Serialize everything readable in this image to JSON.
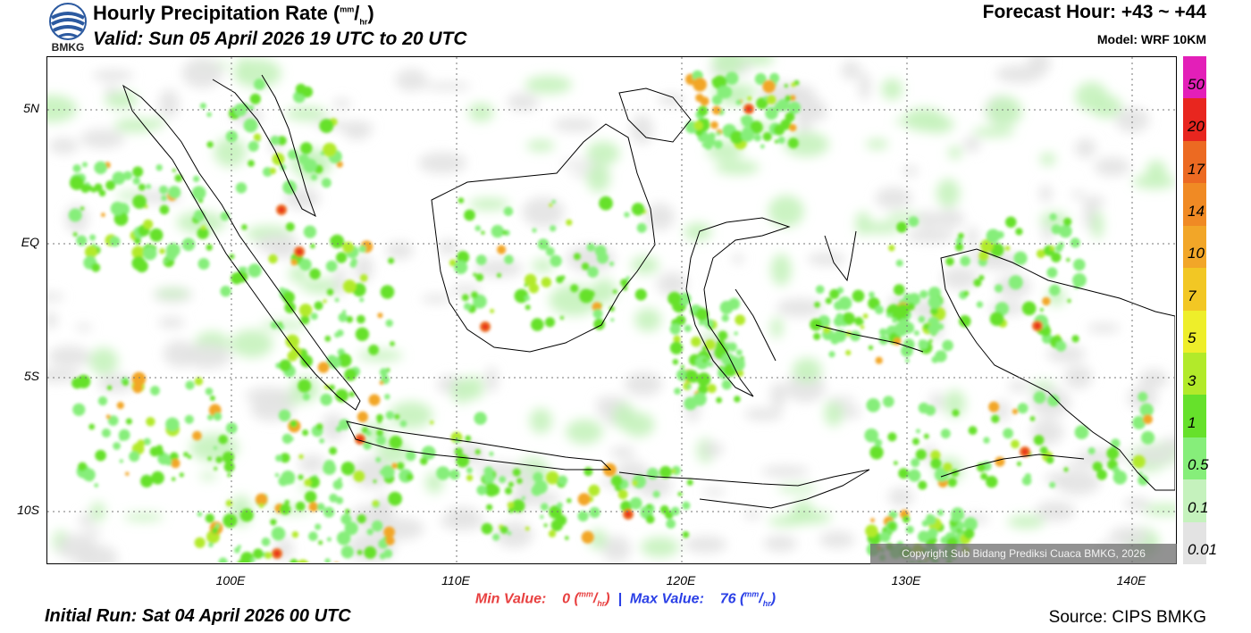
{
  "header": {
    "title": "Hourly Precipitation Rate (",
    "title_unit_mm": "mm",
    "title_unit_sep": "/",
    "title_unit_hr": "hr",
    "title_close": ")",
    "valid": "Valid: Sun 05 April 2026 19 UTC to 20 UTC",
    "forecast_hour": "Forecast Hour: +43 ~ +44",
    "model": "Model: WRF 10KM",
    "logo_text": "BMKG"
  },
  "map": {
    "lat_labels": [
      "5N",
      "EQ",
      "5S",
      "10S"
    ],
    "lon_labels": [
      "100E",
      "110E",
      "120E",
      "130E",
      "140E"
    ],
    "copyright": "Copyright Sub Bidang Prediksi Cuaca BMKG, 2026"
  },
  "footer": {
    "min_label": "Min Value:",
    "min_value": "0",
    "max_label": "Max Value:",
    "max_value": "76",
    "unit_mm": "mm",
    "unit_sep": "/",
    "unit_hr": "hr",
    "separator": "|",
    "initial_run": "Initial Run: Sat 04 April 2026 00 UTC",
    "source": "Source: CIPS BMKG"
  },
  "legend": {
    "labels": [
      "50",
      "20",
      "17",
      "14",
      "10",
      "7",
      "5",
      "3",
      "1",
      "0.5",
      "0.1",
      "0.01"
    ],
    "colors": [
      "#e31fb8",
      "#e8261f",
      "#ec6a22",
      "#f08a24",
      "#f2a628",
      "#f2c724",
      "#eeee2a",
      "#b2ea2a",
      "#66e12b",
      "#86ee7a",
      "#c5f2bd",
      "#e3e3e3"
    ]
  }
}
